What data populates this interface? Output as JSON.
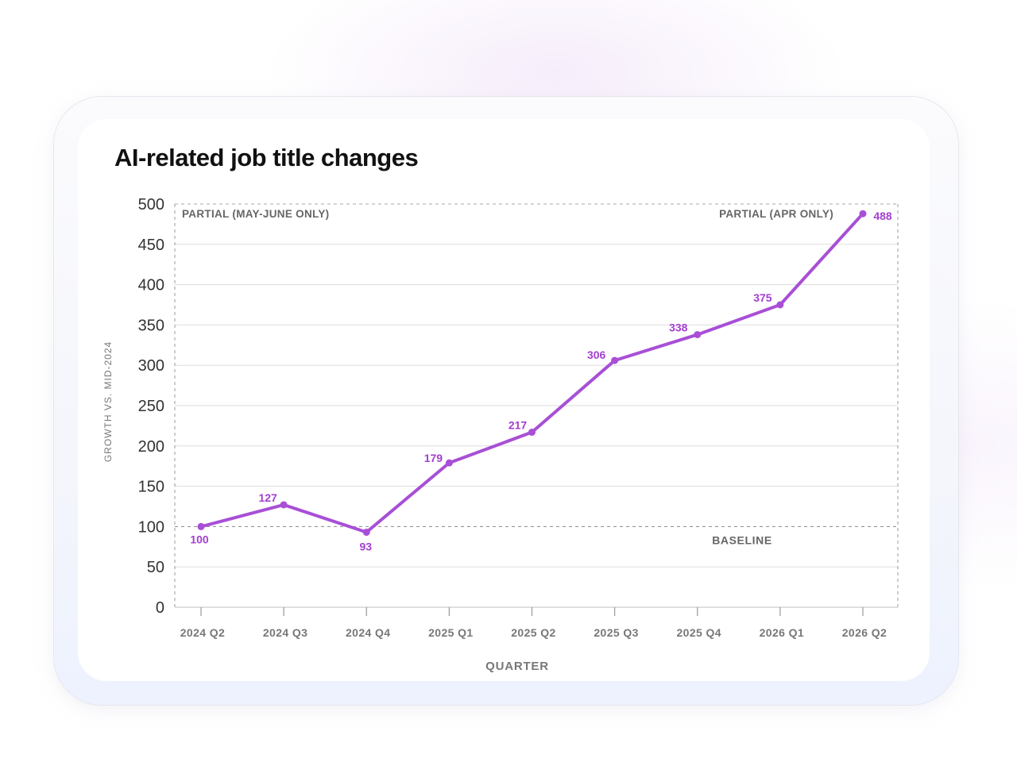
{
  "colors": {
    "accent": "#a84fd6",
    "label": "#a33fd0",
    "axis_text": "#333333",
    "secondary_text": "#777777",
    "grid": "#dddddd"
  },
  "chart_data": {
    "type": "line",
    "title": "AI-related job title changes",
    "xlabel": "QUARTER",
    "ylabel": "GROWTH VS. MID-2024",
    "categories": [
      "2024 Q2",
      "2024 Q3",
      "2024 Q4",
      "2025 Q1",
      "2025 Q2",
      "2025 Q3",
      "2025 Q4",
      "2026 Q1",
      "2026 Q2"
    ],
    "series": [
      {
        "values": [
          100,
          127,
          93,
          179,
          217,
          306,
          338,
          375,
          488
        ]
      }
    ],
    "data_labels": [
      "100",
      "127",
      "93",
      "179",
      "217",
      "306",
      "338",
      "375",
      "488"
    ],
    "ylim": [
      0,
      500
    ],
    "yticks": [
      0,
      50,
      100,
      150,
      200,
      250,
      300,
      350,
      400,
      450,
      500
    ],
    "grid": true,
    "annotations": {
      "partial_left": "PARTIAL (MAY-JUNE ONLY)",
      "partial_right": "PARTIAL (APR ONLY)",
      "baseline_label": "BASELINE",
      "baseline_value": 100
    }
  }
}
